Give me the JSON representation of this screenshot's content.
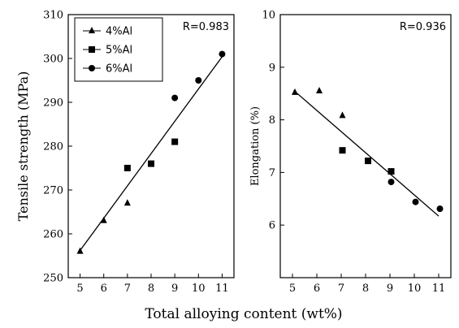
{
  "chart_data": [
    {
      "type": "scatter",
      "ylabel": "Tensile strength (MPa)",
      "xlim": [
        4.5,
        11.5
      ],
      "ylim": [
        250,
        310
      ],
      "x_ticks": [
        5,
        6,
        7,
        8,
        9,
        10,
        11
      ],
      "y_ticks": [
        250,
        260,
        270,
        280,
        290,
        300,
        310
      ],
      "annotation": "R=0.983",
      "legend": {
        "placement": "top-left"
      },
      "series": [
        {
          "name": "4%Al",
          "marker": "triangle",
          "points": [
            [
              5,
              256
            ],
            [
              6,
              263
            ],
            [
              7,
              267
            ]
          ]
        },
        {
          "name": "5%Al",
          "marker": "square",
          "points": [
            [
              7,
              275
            ],
            [
              8,
              276
            ],
            [
              9,
              281
            ]
          ]
        },
        {
          "name": "6%Al",
          "marker": "circle",
          "points": [
            [
              9,
              291
            ],
            [
              10,
              295
            ],
            [
              11,
              301
            ]
          ]
        }
      ],
      "fit_line": [
        [
          5,
          256.2
        ],
        [
          11,
          300.4
        ]
      ]
    },
    {
      "type": "scatter",
      "ylabel": "Elongation (%)",
      "xlim": [
        4.5,
        11.5
      ],
      "ylim": [
        5,
        10
      ],
      "x_ticks": [
        5,
        6,
        7,
        8,
        9,
        10,
        11
      ],
      "y_ticks": [
        6,
        7,
        8,
        9,
        10
      ],
      "annotation": "R=0.936",
      "series": [
        {
          "name": "4%Al",
          "marker": "triangle",
          "points": [
            [
              5.1,
              8.52
            ],
            [
              6.1,
              8.55
            ],
            [
              7.05,
              8.08
            ]
          ]
        },
        {
          "name": "5%Al",
          "marker": "square",
          "points": [
            [
              7.05,
              7.42
            ],
            [
              8.1,
              7.22
            ],
            [
              9.05,
              7.02
            ]
          ]
        },
        {
          "name": "6%Al",
          "marker": "circle",
          "points": [
            [
              9.05,
              6.82
            ],
            [
              10.05,
              6.44
            ],
            [
              11.05,
              6.31
            ]
          ]
        }
      ],
      "fit_line": [
        [
          5.05,
          8.56
        ],
        [
          11.0,
          6.17
        ]
      ]
    }
  ],
  "xlabel": "Total alloying content (wt%)"
}
